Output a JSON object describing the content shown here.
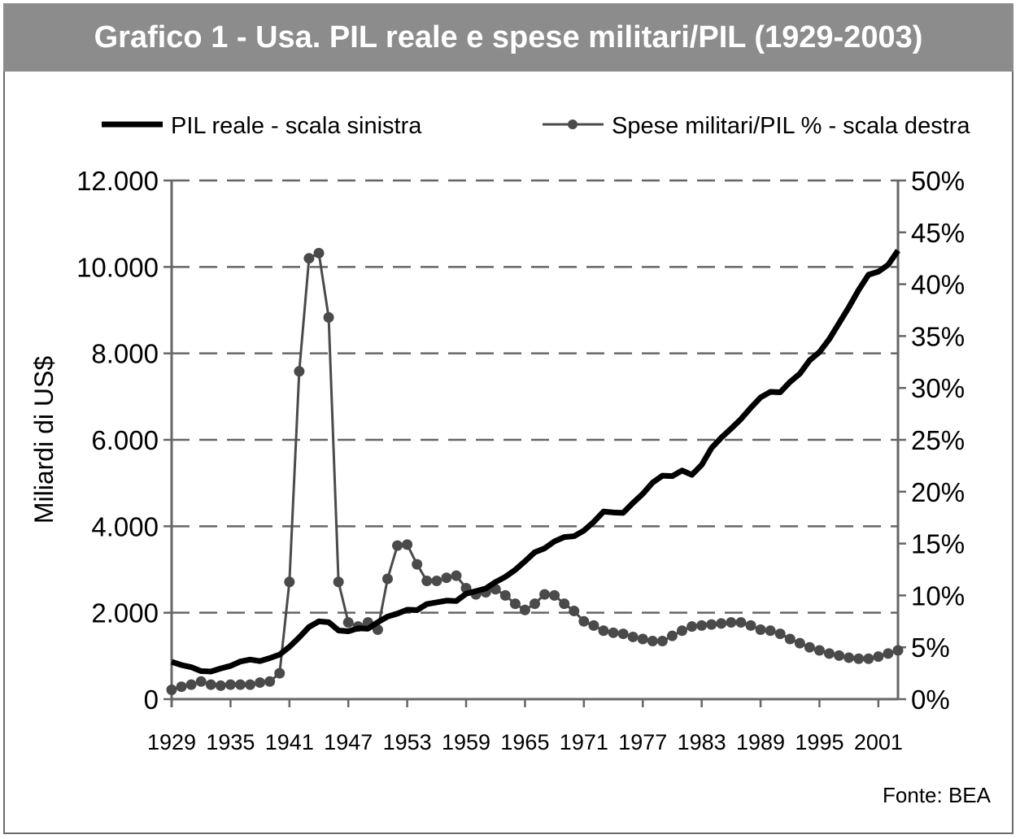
{
  "chart_data": {
    "type": "line",
    "title": "Grafico 1 - Usa. PIL reale e spese militari/PIL (1929-2003)",
    "ylabel": "Miliardi di US$",
    "source": "Fonte: BEA",
    "ylim": [
      0,
      12000
    ],
    "y2lim": [
      0,
      50
    ],
    "yticks": [
      "0",
      "2.000",
      "4.000",
      "6.000",
      "8.000",
      "10.000",
      "12.000"
    ],
    "y2ticks": [
      "0%",
      "5%",
      "10%",
      "15%",
      "20%",
      "25%",
      "30%",
      "35%",
      "40%",
      "45%",
      "50%"
    ],
    "xticks": [
      "1929",
      "1935",
      "1941",
      "1947",
      "1953",
      "1959",
      "1965",
      "1971",
      "1977",
      "1983",
      "1989",
      "1995",
      "2001"
    ],
    "grid": true,
    "legend_position": "top",
    "x": [
      1929,
      1930,
      1931,
      1932,
      1933,
      1934,
      1935,
      1936,
      1937,
      1938,
      1939,
      1940,
      1941,
      1942,
      1943,
      1944,
      1945,
      1946,
      1947,
      1948,
      1949,
      1950,
      1951,
      1952,
      1953,
      1954,
      1955,
      1956,
      1957,
      1958,
      1959,
      1960,
      1961,
      1962,
      1963,
      1964,
      1965,
      1966,
      1967,
      1968,
      1969,
      1970,
      1971,
      1972,
      1973,
      1974,
      1975,
      1976,
      1977,
      1978,
      1979,
      1980,
      1981,
      1982,
      1983,
      1984,
      1985,
      1986,
      1987,
      1988,
      1989,
      1990,
      1991,
      1992,
      1993,
      1994,
      1995,
      1996,
      1997,
      1998,
      1999,
      2000,
      2001,
      2002,
      2003
    ],
    "series": [
      {
        "name": "PIL reale - scala sinistra",
        "axis": "left",
        "color": "#000000",
        "style": "solid",
        "values": [
          865,
          790,
          740,
          650,
          640,
          710,
          770,
          870,
          915,
          880,
          950,
          1030,
          1210,
          1430,
          1670,
          1800,
          1780,
          1590,
          1570,
          1640,
          1630,
          1780,
          1910,
          1980,
          2070,
          2060,
          2200,
          2240,
          2280,
          2270,
          2440,
          2500,
          2560,
          2710,
          2830,
          2990,
          3190,
          3400,
          3490,
          3650,
          3750,
          3770,
          3900,
          4100,
          4340,
          4320,
          4310,
          4540,
          4750,
          5010,
          5170,
          5160,
          5290,
          5190,
          5420,
          5810,
          6050,
          6260,
          6480,
          6740,
          6980,
          7110,
          7100,
          7340,
          7530,
          7840,
          8030,
          8330,
          8700,
          9070,
          9470,
          9820,
          9890,
          10050,
          10380
        ]
      },
      {
        "name": "Spese militari/PIL % - scala destra",
        "axis": "right",
        "color": "#4a4a4a",
        "style": "dot-line",
        "values": [
          0.9,
          1.2,
          1.4,
          1.7,
          1.4,
          1.3,
          1.4,
          1.4,
          1.4,
          1.6,
          1.7,
          2.5,
          11.3,
          31.6,
          42.5,
          43.0,
          36.8,
          11.3,
          7.4,
          7.0,
          7.4,
          6.7,
          11.6,
          14.8,
          14.9,
          13.0,
          11.4,
          11.4,
          11.7,
          11.9,
          10.7,
          10.1,
          10.3,
          10.6,
          10.0,
          9.2,
          8.6,
          9.2,
          10.1,
          10.0,
          9.2,
          8.5,
          7.5,
          7.1,
          6.6,
          6.4,
          6.3,
          6.0,
          5.8,
          5.6,
          5.6,
          6.1,
          6.6,
          7.0,
          7.1,
          7.2,
          7.3,
          7.4,
          7.4,
          7.1,
          6.7,
          6.6,
          6.3,
          5.8,
          5.4,
          5.0,
          4.7,
          4.4,
          4.2,
          4.0,
          3.9,
          3.9,
          4.1,
          4.4,
          4.7
        ]
      }
    ]
  }
}
